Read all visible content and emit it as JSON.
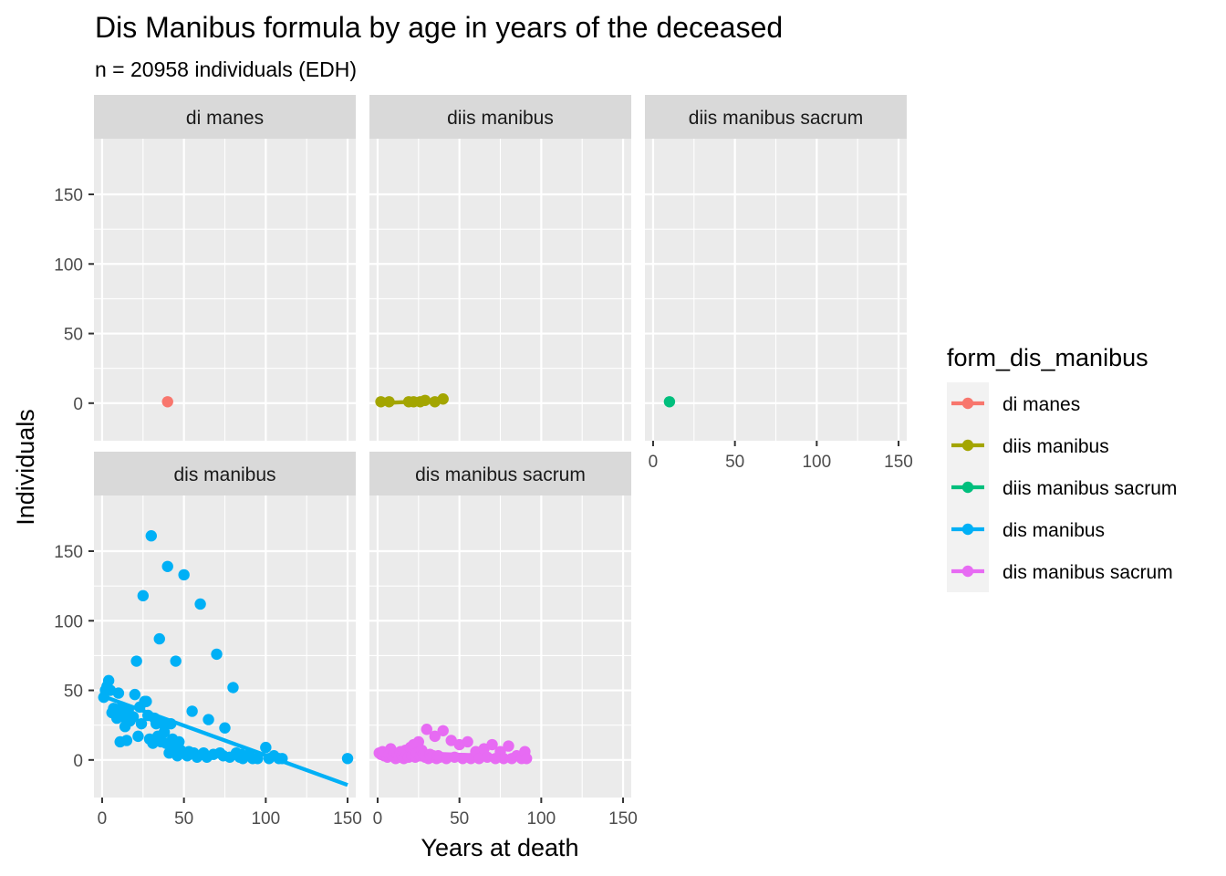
{
  "chart_data": {
    "type": "scatter",
    "title": "Dis Manibus formula by age in years of the deceased",
    "subtitle": "n = 20958 individuals (EDH)",
    "xlabel": "Years at death",
    "ylabel": "Individuals",
    "xlim": [
      -5,
      155
    ],
    "ylim": [
      -27,
      190
    ],
    "xticks": [
      0,
      50,
      100,
      150
    ],
    "yticks": [
      0,
      50,
      100,
      150
    ],
    "grid": true,
    "legend": {
      "title": "form_dis_manibus",
      "position": "right"
    },
    "facets": [
      {
        "name": "di manes",
        "color": "#F8766D",
        "points": [
          [
            40,
            1
          ]
        ],
        "trend": null
      },
      {
        "name": "diis manibus",
        "color": "#A3A500",
        "points": [
          [
            2,
            1
          ],
          [
            7,
            1
          ],
          [
            19,
            1
          ],
          [
            22,
            1
          ],
          [
            26,
            1
          ],
          [
            29,
            2
          ],
          [
            35,
            1
          ],
          [
            40,
            3
          ]
        ],
        "trend": [
          [
            2,
            0
          ],
          [
            40,
            2
          ]
        ]
      },
      {
        "name": "diis manibus sacrum",
        "color": "#00BF7D",
        "points": [
          [
            10,
            1
          ]
        ],
        "trend": null
      },
      {
        "name": "dis manibus",
        "color": "#00B0F6",
        "points": [
          [
            1,
            45
          ],
          [
            2,
            50
          ],
          [
            3,
            53
          ],
          [
            4,
            57
          ],
          [
            5,
            50
          ],
          [
            6,
            34
          ],
          [
            7,
            37
          ],
          [
            8,
            33
          ],
          [
            9,
            30
          ],
          [
            10,
            48
          ],
          [
            11,
            13
          ],
          [
            12,
            38
          ],
          [
            13,
            31
          ],
          [
            14,
            24
          ],
          [
            15,
            14
          ],
          [
            16,
            36
          ],
          [
            17,
            28
          ],
          [
            18,
            30
          ],
          [
            19,
            31
          ],
          [
            20,
            47
          ],
          [
            21,
            71
          ],
          [
            22,
            17
          ],
          [
            23,
            38
          ],
          [
            24,
            26
          ],
          [
            25,
            118
          ],
          [
            26,
            42
          ],
          [
            27,
            42
          ],
          [
            28,
            32
          ],
          [
            29,
            15
          ],
          [
            30,
            161
          ],
          [
            31,
            12
          ],
          [
            32,
            30
          ],
          [
            33,
            26
          ],
          [
            34,
            17
          ],
          [
            35,
            87
          ],
          [
            36,
            13
          ],
          [
            37,
            26
          ],
          [
            38,
            20
          ],
          [
            39,
            12
          ],
          [
            40,
            139
          ],
          [
            41,
            5
          ],
          [
            42,
            26
          ],
          [
            43,
            15
          ],
          [
            44,
            10
          ],
          [
            45,
            71
          ],
          [
            46,
            3
          ],
          [
            47,
            13
          ],
          [
            48,
            7
          ],
          [
            49,
            5
          ],
          [
            50,
            133
          ],
          [
            52,
            3
          ],
          [
            53,
            6
          ],
          [
            55,
            35
          ],
          [
            56,
            5
          ],
          [
            58,
            2
          ],
          [
            60,
            112
          ],
          [
            62,
            5
          ],
          [
            64,
            2
          ],
          [
            65,
            29
          ],
          [
            68,
            4
          ],
          [
            70,
            76
          ],
          [
            72,
            5
          ],
          [
            74,
            3
          ],
          [
            75,
            23
          ],
          [
            78,
            2
          ],
          [
            80,
            52
          ],
          [
            82,
            5
          ],
          [
            84,
            2
          ],
          [
            85,
            4
          ],
          [
            86,
            1
          ],
          [
            88,
            3
          ],
          [
            90,
            4
          ],
          [
            92,
            1
          ],
          [
            95,
            1
          ],
          [
            100,
            9
          ],
          [
            102,
            1
          ],
          [
            105,
            3
          ],
          [
            108,
            1
          ],
          [
            110,
            1
          ],
          [
            150,
            1
          ]
        ],
        "trend": [
          [
            0,
            46
          ],
          [
            150,
            -18
          ]
        ]
      },
      {
        "name": "dis manibus sacrum",
        "color": "#E76BF3",
        "points": [
          [
            1,
            5
          ],
          [
            2,
            4
          ],
          [
            3,
            6
          ],
          [
            4,
            3
          ],
          [
            5,
            5
          ],
          [
            6,
            2
          ],
          [
            7,
            4
          ],
          [
            8,
            8
          ],
          [
            9,
            3
          ],
          [
            10,
            5
          ],
          [
            11,
            1
          ],
          [
            12,
            4
          ],
          [
            13,
            2
          ],
          [
            14,
            6
          ],
          [
            15,
            3
          ],
          [
            16,
            1
          ],
          [
            17,
            7
          ],
          [
            18,
            4
          ],
          [
            19,
            2
          ],
          [
            20,
            9
          ],
          [
            21,
            3
          ],
          [
            22,
            11
          ],
          [
            23,
            2
          ],
          [
            24,
            5
          ],
          [
            25,
            13
          ],
          [
            26,
            3
          ],
          [
            27,
            7
          ],
          [
            28,
            4
          ],
          [
            29,
            2
          ],
          [
            30,
            22
          ],
          [
            31,
            1
          ],
          [
            32,
            4
          ],
          [
            33,
            2
          ],
          [
            34,
            3
          ],
          [
            35,
            17
          ],
          [
            36,
            1
          ],
          [
            37,
            3
          ],
          [
            38,
            2
          ],
          [
            40,
            21
          ],
          [
            42,
            1
          ],
          [
            45,
            14
          ],
          [
            47,
            2
          ],
          [
            50,
            11
          ],
          [
            52,
            1
          ],
          [
            55,
            13
          ],
          [
            57,
            1
          ],
          [
            60,
            6
          ],
          [
            62,
            1
          ],
          [
            65,
            8
          ],
          [
            67,
            2
          ],
          [
            70,
            11
          ],
          [
            72,
            1
          ],
          [
            75,
            6
          ],
          [
            77,
            1
          ],
          [
            80,
            10
          ],
          [
            82,
            1
          ],
          [
            85,
            3
          ],
          [
            88,
            1
          ],
          [
            90,
            6
          ],
          [
            91,
            1
          ]
        ],
        "trend": [
          [
            1,
            6
          ],
          [
            90,
            2
          ]
        ]
      }
    ]
  }
}
